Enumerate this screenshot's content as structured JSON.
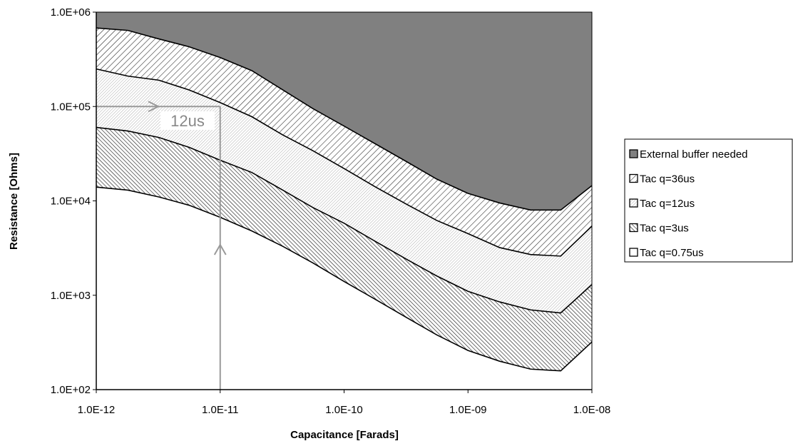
{
  "chart_data": {
    "type": "area",
    "xlabel": "Capacitance [Farads]",
    "ylabel": "Resistance [Ohms]",
    "xscale": "log",
    "yscale": "log",
    "xlim": [
      1e-12,
      1e-08
    ],
    "ylim": [
      100,
      1000000
    ],
    "x_ticks": [
      "1.0E-12",
      "1.0E-11",
      "1.0E-10",
      "1.0E-09",
      "1.0E-08"
    ],
    "y_ticks": [
      "1.0E+06",
      "1.0E+05",
      "1.0E+04",
      "1.0E+03",
      "1.0E+02"
    ],
    "grid": false,
    "legend_position": "right",
    "x": [
      1e-12,
      1.8e-12,
      3.2e-12,
      5.6e-12,
      1e-11,
      1.8e-11,
      3.2e-11,
      5.6e-11,
      1e-10,
      1.8e-10,
      3.2e-10,
      5.6e-10,
      1e-09,
      1.8e-09,
      3.2e-09,
      5.6e-09,
      1e-08
    ],
    "series": [
      {
        "name": "Tac q=0.75us",
        "fill": "#ffffff",
        "values": [
          14000,
          13000,
          11000,
          9000,
          6700,
          4800,
          3300,
          2200,
          1400,
          900,
          580,
          380,
          260,
          200,
          165,
          158,
          320
        ]
      },
      {
        "name": "Tac q=3us",
        "fill": "hatch-dense",
        "values": [
          60000,
          55000,
          47000,
          37000,
          27000,
          20000,
          13000,
          8500,
          5800,
          3700,
          2400,
          1600,
          1100,
          850,
          700,
          650,
          1300
        ]
      },
      {
        "name": "Tac q=12us",
        "fill": "hatch-fine",
        "values": [
          250000,
          210000,
          190000,
          150000,
          110000,
          78000,
          50000,
          34000,
          22000,
          14000,
          9200,
          6200,
          4500,
          3200,
          2700,
          2600,
          5400
        ]
      },
      {
        "name": "Tac q=36us",
        "fill": "hatch-wide",
        "values": [
          680000,
          640000,
          520000,
          430000,
          330000,
          240000,
          150000,
          95000,
          62000,
          40000,
          26000,
          17000,
          12000,
          9500,
          8000,
          8000,
          14500
        ]
      },
      {
        "name": "External buffer needed",
        "fill": "#808080",
        "values": [
          1000000,
          1000000,
          1000000,
          1000000,
          1000000,
          1000000,
          1000000,
          1000000,
          1000000,
          1000000,
          1000000,
          1000000,
          1000000,
          1000000,
          1000000,
          1000000,
          1000000
        ]
      }
    ],
    "annotation": {
      "text": "12us",
      "vertical_line_x": 1e-11,
      "horizontal_line_y": 100000,
      "color": "#999999"
    }
  },
  "legend": {
    "items": [
      {
        "label": "External buffer needed",
        "fill": "#808080"
      },
      {
        "label": "Tac q=36us",
        "fill": "hatch-wide"
      },
      {
        "label": "Tac q=12us",
        "fill": "hatch-fine"
      },
      {
        "label": "Tac q=3us",
        "fill": "hatch-dense"
      },
      {
        "label": "Tac q=0.75us",
        "fill": "#ffffff"
      }
    ]
  }
}
